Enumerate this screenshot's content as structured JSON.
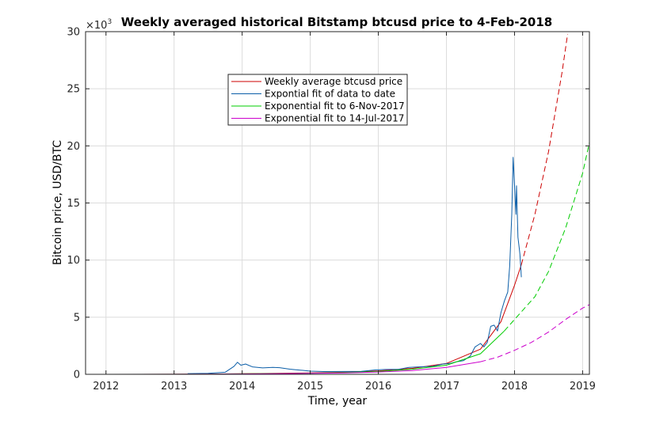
{
  "chart_data": {
    "type": "line",
    "title": "Weekly averaged historical Bitstamp btcusd price to 4-Feb-2018",
    "xlabel": "Time, year",
    "ylabel": "Bitcoin price, USD/BTC",
    "y_multiplier": "×10",
    "y_multiplier_exp": "3",
    "xlim": [
      2011.7,
      2019.1
    ],
    "ylim": [
      0,
      30000
    ],
    "xticks": [
      2012,
      2013,
      2014,
      2015,
      2016,
      2017,
      2018,
      2019
    ],
    "xtick_labels": [
      "2012",
      "2013",
      "2014",
      "2015",
      "2016",
      "2017",
      "2018",
      "2019"
    ],
    "yticks": [
      0,
      5000,
      10000,
      15000,
      20000,
      25000,
      30000
    ],
    "ytick_labels": [
      "0",
      "5",
      "10",
      "15",
      "20",
      "25",
      "30"
    ],
    "grid": true,
    "legend_position": "upper-center",
    "series": [
      {
        "name": "Weekly average btcusd price",
        "color": "#cc0000",
        "style": "solid-then-dashed",
        "points": [
          [
            2011.7,
            0
          ],
          [
            2012.5,
            2
          ],
          [
            2013.0,
            10
          ],
          [
            2013.5,
            25
          ],
          [
            2014.0,
            50
          ],
          [
            2014.5,
            80
          ],
          [
            2015.0,
            120
          ],
          [
            2015.5,
            180
          ],
          [
            2016.0,
            300
          ],
          [
            2016.5,
            520
          ],
          [
            2017.0,
            950
          ],
          [
            2017.5,
            2200
          ],
          [
            2017.8,
            4600
          ],
          [
            2018.0,
            7800
          ],
          [
            2018.1,
            9600
          ]
        ],
        "dashed_points": [
          [
            2018.1,
            9600
          ],
          [
            2018.3,
            14000
          ],
          [
            2018.5,
            19500
          ],
          [
            2018.7,
            26500
          ],
          [
            2018.78,
            29800
          ]
        ]
      },
      {
        "name": "Expontial fit of data to date",
        "color": "#0b5ea8",
        "style": "solid",
        "points": [
          [
            2013.2,
            60
          ],
          [
            2013.5,
            90
          ],
          [
            2013.75,
            180
          ],
          [
            2013.88,
            700
          ],
          [
            2013.93,
            1050
          ],
          [
            2013.98,
            800
          ],
          [
            2014.05,
            900
          ],
          [
            2014.15,
            650
          ],
          [
            2014.3,
            560
          ],
          [
            2014.45,
            600
          ],
          [
            2014.55,
            580
          ],
          [
            2014.7,
            450
          ],
          [
            2014.85,
            370
          ],
          [
            2015.0,
            280
          ],
          [
            2015.2,
            240
          ],
          [
            2015.5,
            250
          ],
          [
            2015.75,
            260
          ],
          [
            2015.95,
            380
          ],
          [
            2016.1,
            420
          ],
          [
            2016.3,
            440
          ],
          [
            2016.45,
            600
          ],
          [
            2016.6,
            650
          ],
          [
            2016.8,
            700
          ],
          [
            2016.95,
            900
          ],
          [
            2017.05,
            950
          ],
          [
            2017.15,
            1100
          ],
          [
            2017.25,
            1200
          ],
          [
            2017.35,
            1600
          ],
          [
            2017.42,
            2400
          ],
          [
            2017.5,
            2700
          ],
          [
            2017.55,
            2400
          ],
          [
            2017.6,
            2800
          ],
          [
            2017.65,
            4200
          ],
          [
            2017.7,
            4300
          ],
          [
            2017.75,
            3800
          ],
          [
            2017.8,
            5400
          ],
          [
            2017.85,
            6400
          ],
          [
            2017.9,
            7200
          ],
          [
            2017.93,
            9500
          ],
          [
            2017.96,
            14000
          ],
          [
            2017.98,
            19000
          ],
          [
            2018.0,
            16500
          ],
          [
            2018.02,
            14000
          ],
          [
            2018.03,
            16500
          ],
          [
            2018.05,
            12000
          ],
          [
            2018.07,
            11000
          ],
          [
            2018.08,
            10500
          ],
          [
            2018.1,
            8500
          ]
        ]
      },
      {
        "name": "Exponential fit to 6-Nov-2017",
        "color": "#00cc00",
        "style": "solid-then-dashed",
        "points": [
          [
            2011.7,
            0
          ],
          [
            2013.0,
            10
          ],
          [
            2014.0,
            40
          ],
          [
            2015.0,
            100
          ],
          [
            2015.5,
            150
          ],
          [
            2016.0,
            250
          ],
          [
            2016.5,
            440
          ],
          [
            2017.0,
            800
          ],
          [
            2017.5,
            1800
          ],
          [
            2017.85,
            3800
          ]
        ],
        "dashed_points": [
          [
            2017.85,
            3800
          ],
          [
            2018.0,
            4800
          ],
          [
            2018.3,
            6800
          ],
          [
            2018.5,
            9000
          ],
          [
            2018.75,
            12800
          ],
          [
            2019.0,
            17600
          ],
          [
            2019.1,
            20300
          ]
        ]
      },
      {
        "name": "Exponential fit to 14-Jul-2017",
        "color": "#cc00cc",
        "style": "solid-then-dashed",
        "points": [
          [
            2011.7,
            0
          ],
          [
            2013.0,
            10
          ],
          [
            2014.0,
            30
          ],
          [
            2015.0,
            80
          ],
          [
            2015.5,
            120
          ],
          [
            2016.0,
            200
          ],
          [
            2016.5,
            330
          ],
          [
            2017.0,
            600
          ],
          [
            2017.5,
            1100
          ]
        ],
        "dashed_points": [
          [
            2017.5,
            1100
          ],
          [
            2017.75,
            1500
          ],
          [
            2018.0,
            2100
          ],
          [
            2018.25,
            2800
          ],
          [
            2018.5,
            3700
          ],
          [
            2018.75,
            4800
          ],
          [
            2019.0,
            5800
          ],
          [
            2019.1,
            6100
          ]
        ]
      }
    ]
  }
}
